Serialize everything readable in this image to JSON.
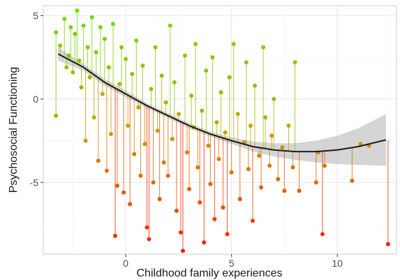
{
  "chart_data": {
    "type": "scatter",
    "title": "",
    "xlabel": "Childhood family experiences",
    "ylabel": "Psychosocial Functioning",
    "xlim": [
      -3.9,
      12.8
    ],
    "ylim": [
      -9.3,
      5.6
    ],
    "x_ticks": [
      0,
      5,
      10
    ],
    "x_tick_labels": [
      "0",
      "5",
      "10"
    ],
    "y_ticks": [
      -5,
      0,
      5
    ],
    "y_tick_labels": [
      "-5",
      "0",
      "5"
    ],
    "grid": true,
    "legend": "none",
    "colors": {
      "high": "#66e000",
      "mid": "#c8a000",
      "low": "#ff1a00",
      "ribbon": "#b3b3b3",
      "fit": "#1a1a1a"
    },
    "fit_curve": {
      "x": [
        -3.2,
        -2,
        -1,
        0,
        1,
        2,
        3,
        4,
        5,
        6,
        7,
        8,
        9,
        10,
        11,
        12.3
      ],
      "y": [
        2.7,
        1.9,
        1.0,
        0.3,
        -0.4,
        -1.0,
        -1.6,
        -2.1,
        -2.5,
        -2.85,
        -3.05,
        -3.15,
        -3.15,
        -3.05,
        -2.85,
        -2.45
      ]
    },
    "ci_band": {
      "x": [
        -3.2,
        -2,
        -1,
        0,
        1,
        2,
        3,
        4,
        5,
        6,
        7,
        8,
        9,
        10,
        11,
        12.3
      ],
      "upper": [
        3.1,
        2.1,
        1.2,
        0.5,
        -0.25,
        -0.85,
        -1.45,
        -1.95,
        -2.3,
        -2.55,
        -2.65,
        -2.65,
        -2.5,
        -2.2,
        -1.75,
        -0.9
      ],
      "lower": [
        2.3,
        1.7,
        0.8,
        0.1,
        -0.55,
        -1.15,
        -1.75,
        -2.25,
        -2.7,
        -3.15,
        -3.45,
        -3.65,
        -3.8,
        -3.9,
        -3.95,
        -4.0
      ]
    },
    "points": [
      {
        "x": -3.3,
        "y": 4.0
      },
      {
        "x": -3.3,
        "y": -1.0
      },
      {
        "x": -3.1,
        "y": 3.2
      },
      {
        "x": -2.9,
        "y": 4.8
      },
      {
        "x": -2.8,
        "y": 1.9
      },
      {
        "x": -2.7,
        "y": 2.6
      },
      {
        "x": -2.6,
        "y": 4.3
      },
      {
        "x": -2.5,
        "y": 1.6
      },
      {
        "x": -2.4,
        "y": 3.9
      },
      {
        "x": -2.3,
        "y": 5.3
      },
      {
        "x": -2.2,
        "y": 2.3
      },
      {
        "x": -2.1,
        "y": 0.7
      },
      {
        "x": -2.0,
        "y": 4.4
      },
      {
        "x": -1.9,
        "y": -2.5
      },
      {
        "x": -1.8,
        "y": 3.1
      },
      {
        "x": -1.7,
        "y": 1.3
      },
      {
        "x": -1.6,
        "y": 4.9
      },
      {
        "x": -1.5,
        "y": -1.1
      },
      {
        "x": -1.4,
        "y": 2.8
      },
      {
        "x": -1.3,
        "y": -3.7
      },
      {
        "x": -1.2,
        "y": 4.3
      },
      {
        "x": -1.1,
        "y": 0.3
      },
      {
        "x": -1.0,
        "y": 3.6
      },
      {
        "x": -0.9,
        "y": -4.3
      },
      {
        "x": -0.8,
        "y": 1.9
      },
      {
        "x": -0.7,
        "y": -2.1
      },
      {
        "x": -0.6,
        "y": 4.5
      },
      {
        "x": -0.5,
        "y": -8.2
      },
      {
        "x": -0.4,
        "y": -5.2
      },
      {
        "x": -0.3,
        "y": 0.9
      },
      {
        "x": -0.2,
        "y": 3.1
      },
      {
        "x": -0.1,
        "y": -5.6
      },
      {
        "x": 0.0,
        "y": 2.4
      },
      {
        "x": 0.1,
        "y": -1.6
      },
      {
        "x": 0.2,
        "y": -6.3
      },
      {
        "x": 0.3,
        "y": 1.5
      },
      {
        "x": 0.4,
        "y": -3.3
      },
      {
        "x": 0.5,
        "y": 3.5
      },
      {
        "x": 0.6,
        "y": -0.5
      },
      {
        "x": 0.7,
        "y": -4.6
      },
      {
        "x": 0.8,
        "y": 2.0
      },
      {
        "x": 0.9,
        "y": -2.7
      },
      {
        "x": 1.0,
        "y": -7.7
      },
      {
        "x": 1.1,
        "y": -8.4
      },
      {
        "x": 1.2,
        "y": 0.6
      },
      {
        "x": 1.3,
        "y": -5.0
      },
      {
        "x": 1.4,
        "y": 3.1
      },
      {
        "x": 1.5,
        "y": -1.9
      },
      {
        "x": 1.6,
        "y": -6.0
      },
      {
        "x": 1.7,
        "y": 1.4
      },
      {
        "x": 1.8,
        "y": -3.8
      },
      {
        "x": 1.9,
        "y": -0.2
      },
      {
        "x": 2.0,
        "y": -4.6
      },
      {
        "x": 2.1,
        "y": 4.4
      },
      {
        "x": 2.2,
        "y": -2.4
      },
      {
        "x": 2.3,
        "y": 1.0
      },
      {
        "x": 2.4,
        "y": -6.7
      },
      {
        "x": 2.5,
        "y": -0.9
      },
      {
        "x": 2.6,
        "y": -8.0
      },
      {
        "x": 2.7,
        "y": -9.1
      },
      {
        "x": 2.8,
        "y": 2.6
      },
      {
        "x": 2.9,
        "y": -3.2
      },
      {
        "x": 3.0,
        "y": -5.4
      },
      {
        "x": 3.1,
        "y": 0.2
      },
      {
        "x": 3.2,
        "y": -1.7
      },
      {
        "x": 3.3,
        "y": 3.3
      },
      {
        "x": 3.4,
        "y": -4.1
      },
      {
        "x": 3.5,
        "y": -6.2
      },
      {
        "x": 3.6,
        "y": -0.7
      },
      {
        "x": 3.7,
        "y": -8.6
      },
      {
        "x": 3.8,
        "y": 1.7
      },
      {
        "x": 3.9,
        "y": -2.8
      },
      {
        "x": 4.0,
        "y": -5.1
      },
      {
        "x": 4.1,
        "y": 2.5
      },
      {
        "x": 4.2,
        "y": -7.2
      },
      {
        "x": 4.3,
        "y": -1.4
      },
      {
        "x": 4.4,
        "y": -3.6
      },
      {
        "x": 4.5,
        "y": 0.4
      },
      {
        "x": 4.6,
        "y": -6.5
      },
      {
        "x": 4.7,
        "y": -2.0
      },
      {
        "x": 4.8,
        "y": -8.1
      },
      {
        "x": 4.9,
        "y": 1.3
      },
      {
        "x": 5.0,
        "y": -4.4
      },
      {
        "x": 5.1,
        "y": 3.3
      },
      {
        "x": 5.3,
        "y": -0.9
      },
      {
        "x": 5.4,
        "y": -6.0
      },
      {
        "x": 5.6,
        "y": -2.6
      },
      {
        "x": 5.7,
        "y": 2.2
      },
      {
        "x": 5.8,
        "y": -4.2
      },
      {
        "x": 5.9,
        "y": -1.6
      },
      {
        "x": 6.0,
        "y": -7.3
      },
      {
        "x": 6.1,
        "y": 0.8
      },
      {
        "x": 6.3,
        "y": -3.4
      },
      {
        "x": 6.4,
        "y": -5.3
      },
      {
        "x": 6.5,
        "y": 3.1
      },
      {
        "x": 6.6,
        "y": -1.1
      },
      {
        "x": 6.8,
        "y": -4.0
      },
      {
        "x": 6.9,
        "y": -2.2
      },
      {
        "x": 7.0,
        "y": 0.0
      },
      {
        "x": 7.2,
        "y": -4.8
      },
      {
        "x": 7.4,
        "y": -2.9
      },
      {
        "x": 7.5,
        "y": -5.5
      },
      {
        "x": 7.7,
        "y": -1.6
      },
      {
        "x": 7.9,
        "y": -4.1
      },
      {
        "x": 8.0,
        "y": 2.2
      },
      {
        "x": 8.2,
        "y": -5.5
      },
      {
        "x": 9.0,
        "y": -5.0
      },
      {
        "x": 9.1,
        "y": -3.2
      },
      {
        "x": 9.3,
        "y": -8.1
      },
      {
        "x": 9.4,
        "y": -4.0
      },
      {
        "x": 10.7,
        "y": -4.9
      },
      {
        "x": 11.1,
        "y": -2.7
      },
      {
        "x": 11.5,
        "y": -2.8
      },
      {
        "x": 12.4,
        "y": -8.7
      }
    ]
  }
}
